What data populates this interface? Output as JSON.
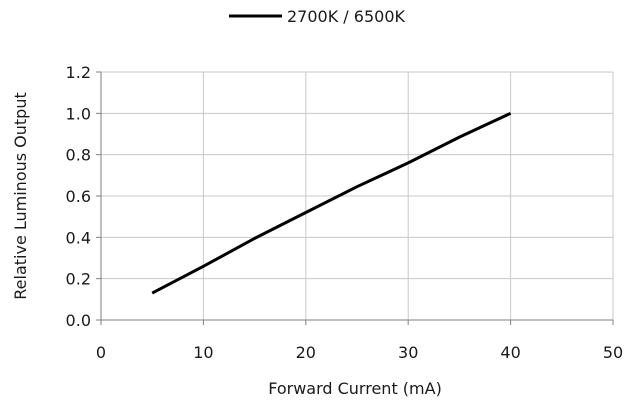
{
  "chart_data": {
    "type": "line",
    "title": "",
    "xlabel": "Forward Current (mA)",
    "ylabel": "Relative Luminous Output",
    "xlim": [
      0,
      50
    ],
    "ylim": [
      0,
      1.2
    ],
    "x_ticks": [
      0,
      10,
      20,
      30,
      40,
      50
    ],
    "y_ticks": [
      0.0,
      0.2,
      0.4,
      0.6,
      0.8,
      1.0,
      1.2
    ],
    "x_tick_labels": [
      "0",
      "10",
      "20",
      "30",
      "40",
      "50"
    ],
    "y_tick_labels": [
      "0.0",
      "0.2",
      "0.4",
      "0.6",
      "0.8",
      "1.0",
      "1.2"
    ],
    "grid": true,
    "legend_position": "top-center",
    "series": [
      {
        "name": "2700K / 6500K",
        "color": "#000000",
        "x": [
          5,
          10,
          15,
          20,
          25,
          30,
          35,
          40
        ],
        "y": [
          0.13,
          0.26,
          0.395,
          0.52,
          0.645,
          0.76,
          0.885,
          1.0
        ]
      }
    ]
  }
}
